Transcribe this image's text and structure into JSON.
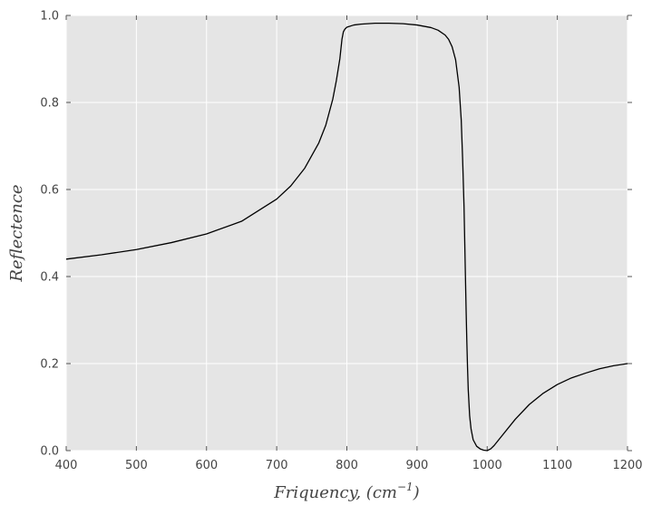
{
  "chart_data": {
    "type": "line",
    "title": "",
    "xlabel": "Friquency, (cm",
    "xlabel_sup": "−1",
    "xlabel_close": ")",
    "ylabel": "Reflectence",
    "xlim": [
      400,
      1200
    ],
    "ylim": [
      0.0,
      1.0
    ],
    "grid": true,
    "background": "#e5e5e5",
    "grid_color": "#ffffff",
    "line_color": "#000000",
    "x_ticks": [
      400,
      500,
      600,
      700,
      800,
      900,
      1000,
      1100,
      1200
    ],
    "x_tick_labels": [
      "400",
      "500",
      "600",
      "700",
      "800",
      "900",
      "1000",
      "1100",
      "1200"
    ],
    "y_ticks": [
      0.0,
      0.2,
      0.4,
      0.6,
      0.8,
      1.0
    ],
    "y_tick_labels": [
      "0.0",
      "0.2",
      "0.4",
      "0.6",
      "0.8",
      "1.0"
    ],
    "series": [
      {
        "x": [
          400,
          450,
          500,
          550,
          600,
          650,
          700,
          720,
          740,
          760,
          770,
          780,
          785,
          790,
          793,
          795,
          797,
          800,
          810,
          820,
          840,
          860,
          880,
          900,
          920,
          930,
          940,
          945,
          950,
          955,
          960,
          963,
          965,
          967,
          968,
          969,
          970,
          971,
          972,
          973,
          974,
          975,
          977,
          980,
          985,
          990,
          995,
          1000,
          1005,
          1010,
          1020,
          1040,
          1060,
          1080,
          1100,
          1120,
          1140,
          1160,
          1180,
          1200
        ],
        "y": [
          0.44,
          0.45,
          0.462,
          0.478,
          0.498,
          0.527,
          0.578,
          0.608,
          0.649,
          0.707,
          0.748,
          0.808,
          0.85,
          0.9,
          0.945,
          0.962,
          0.968,
          0.973,
          0.978,
          0.98,
          0.982,
          0.982,
          0.981,
          0.978,
          0.972,
          0.966,
          0.955,
          0.945,
          0.928,
          0.898,
          0.835,
          0.76,
          0.67,
          0.56,
          0.48,
          0.4,
          0.32,
          0.25,
          0.19,
          0.14,
          0.11,
          0.08,
          0.05,
          0.025,
          0.01,
          0.004,
          0.001,
          0.0,
          0.004,
          0.012,
          0.032,
          0.072,
          0.106,
          0.132,
          0.152,
          0.167,
          0.178,
          0.188,
          0.195,
          0.2
        ]
      }
    ]
  }
}
